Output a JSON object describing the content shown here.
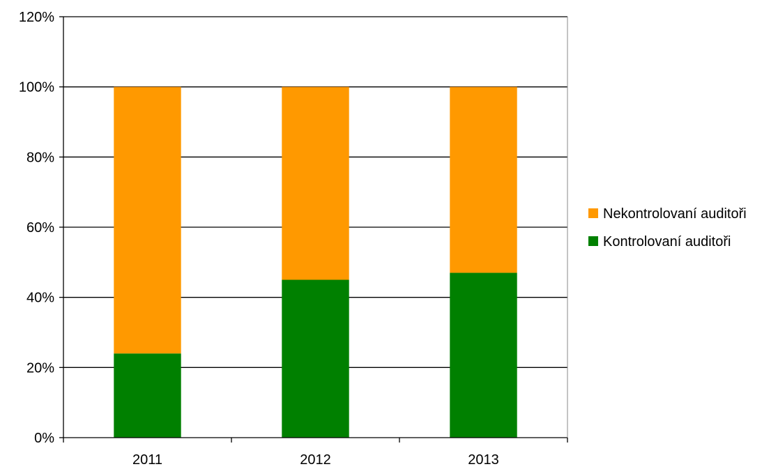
{
  "chart_data": {
    "type": "bar",
    "stacked": true,
    "categories": [
      "2011",
      "2012",
      "2013"
    ],
    "series": [
      {
        "name": "Kontrolovaní auditoři",
        "color": "#008000",
        "values": [
          24,
          45,
          47
        ]
      },
      {
        "name": "Nekontrolovaní auditoři",
        "color": "#FF9900",
        "values": [
          76,
          55,
          53
        ]
      }
    ],
    "ylim": [
      0,
      120
    ],
    "yticks": [
      0,
      20,
      40,
      60,
      80,
      100,
      120
    ],
    "ytick_labels": [
      "0%",
      "20%",
      "40%",
      "60%",
      "80%",
      "100%",
      "120%"
    ],
    "grid": true,
    "legend_position": "right",
    "legend_order": [
      "Nekontrolovaní auditoři",
      "Kontrolovaní auditoři"
    ]
  }
}
